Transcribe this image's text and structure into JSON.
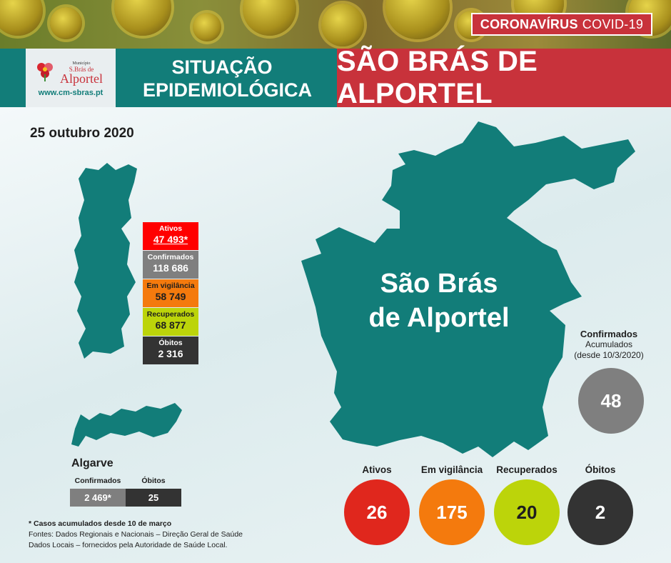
{
  "banner": {
    "tag_bold": "CORONAVÍRUS",
    "tag_rest": "COVID-19"
  },
  "logo": {
    "line1": "Município",
    "line2": "S.Brás de",
    "line3": "Alportel",
    "url": "www.cm-sbras.pt"
  },
  "header": {
    "subtitle_line1": "SITUAÇÃO",
    "subtitle_line2": "EPIDEMIOLÓGICA",
    "title": "SÃO BRÁS DE ALPORTEL"
  },
  "date": "25 outubro 2020",
  "national": [
    {
      "label": "Ativos",
      "value": "47 493*",
      "bg": "#ff0000",
      "color": "#ffffff"
    },
    {
      "label": "Confirmados",
      "value": "118 686",
      "bg": "#7f7f7f",
      "color": "#ffffff"
    },
    {
      "label": "Em vigilância",
      "value": "58 749",
      "bg": "#f47a0d",
      "color": "#1e1e1e"
    },
    {
      "label": "Recuperados",
      "value": "68 877",
      "bg": "#bcd40a",
      "color": "#1e1e1e"
    },
    {
      "label": "Óbitos",
      "value": "2 316",
      "bg": "#333333",
      "color": "#ffffff"
    }
  ],
  "algarve": {
    "title": "Algarve",
    "confirmed_label": "Confirmados",
    "confirmed_value": "2 469*",
    "deaths_label": "Óbitos",
    "deaths_value": "25"
  },
  "footnotes": {
    "line1": "* Casos acumulados  desde 10 de março",
    "line2": "Fontes:  Dados Regionais e Nacionais – Direção Geral de Saúde",
    "line3": "Dados Locais – fornecidos pela Autoridade de Saúde Local."
  },
  "map_label": {
    "line1": "São Brás",
    "line2": "de Alportel"
  },
  "local_confirmed": {
    "title": "Confirmados",
    "sub1": "Acumulados",
    "sub2": "(desde 10/3/2020)",
    "value": "48"
  },
  "local": [
    {
      "label": "Ativos",
      "value": "26",
      "bg": "#e0271d",
      "color": "#ffffff"
    },
    {
      "label": "Em vigilância",
      "value": "175",
      "bg": "#f47a0d",
      "color": "#ffffff"
    },
    {
      "label": "Recuperados",
      "value": "20",
      "bg": "#bcd40a",
      "color": "#1e1e1e"
    },
    {
      "label": "Óbitos",
      "value": "2",
      "bg": "#333333",
      "color": "#ffffff"
    }
  ],
  "colors": {
    "teal": "#127d79",
    "red": "#c8323b",
    "grey": "#7f7f7f",
    "dark": "#333333"
  }
}
